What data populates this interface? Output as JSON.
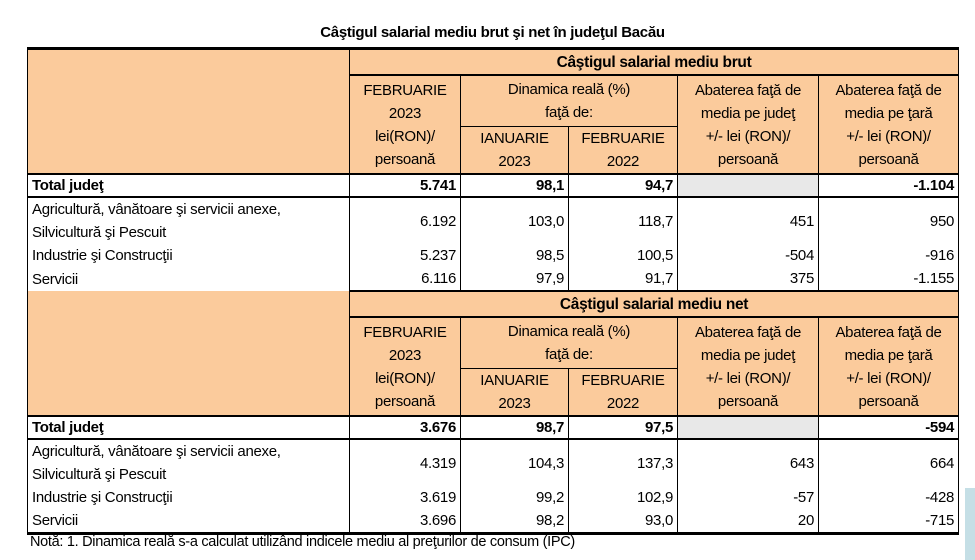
{
  "title": "Câştigul salarial mediu brut şi net în judeţul Bacău",
  "header": {
    "col1": [
      "FEBRUARIE",
      "2023",
      "lei(RON)/",
      "persoană"
    ],
    "dinamica": [
      "Dinamica reală (%)",
      "faţă de:"
    ],
    "sub1": [
      "IANUARIE",
      "2023"
    ],
    "sub2": [
      "FEBRUARIE",
      "2022"
    ],
    "col4": [
      "Abaterea faţă de",
      "media pe judeţ",
      "+/- lei (RON)/",
      "persoană"
    ],
    "col5": [
      "Abaterea faţă de",
      "media pe ţară",
      "+/- lei (RON)/",
      "persoană"
    ]
  },
  "sections": [
    {
      "title": "Câştigul salarial mediu brut",
      "total": {
        "label": "Total judeţ",
        "v": [
          "5.741",
          "98,1",
          "94,7",
          "",
          "-1.104"
        ]
      },
      "rows": [
        {
          "label": [
            "Agricultură, vânătoare şi servicii anexe,",
            "Silvicultură şi Pescuit"
          ],
          "v": [
            "6.192",
            "103,0",
            "118,7",
            "451",
            "950"
          ]
        },
        {
          "label": [
            "Industrie şi Construcţii"
          ],
          "v": [
            "5.237",
            "98,5",
            "100,5",
            "-504",
            "-916"
          ]
        },
        {
          "label": [
            "Servicii"
          ],
          "v": [
            "6.116",
            "97,9",
            "91,7",
            "375",
            "-1.155"
          ]
        }
      ]
    },
    {
      "title": "Câştigul salarial mediu net",
      "total": {
        "label": "Total judeţ",
        "v": [
          "3.676",
          "98,7",
          "97,5",
          "",
          "-594"
        ]
      },
      "rows": [
        {
          "label": [
            "Agricultură, vânătoare şi servicii anexe,",
            "Silvicultură şi Pescuit"
          ],
          "v": [
            "4.319",
            "104,3",
            "137,3",
            "643",
            "664"
          ]
        },
        {
          "label": [
            "Industrie şi Construcţii"
          ],
          "v": [
            "3.619",
            "99,2",
            "102,9",
            "-57",
            "-428"
          ]
        },
        {
          "label": [
            "Servicii"
          ],
          "v": [
            "3.696",
            "98,2",
            "93,0",
            "20",
            "-715"
          ]
        }
      ]
    }
  ],
  "note": "Notă: 1. Dinamica reală s-a calculat utilizând indicele mediu al preţurilor de consum (IPC)"
}
